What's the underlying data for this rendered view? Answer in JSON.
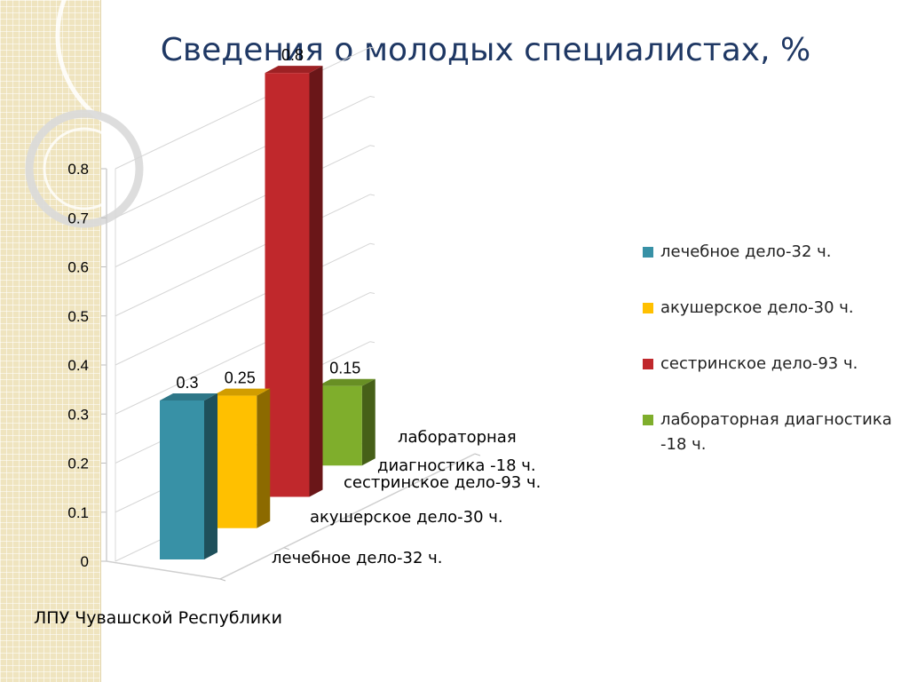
{
  "title": "Сведения о молодых специалистах, %",
  "chart_data": {
    "type": "bar",
    "categories": [
      "ЛПУ Чувашской Республики"
    ],
    "series": [
      {
        "name": "лечебное дело-32 ч.",
        "values": [
          0.3
        ],
        "color": "#3891a6"
      },
      {
        "name": "акушерское дело-30 ч.",
        "values": [
          0.25
        ],
        "color": "#ffc000"
      },
      {
        "name": "сестринское дело-93 ч.",
        "values": [
          0.8
        ],
        "color": "#c0282c"
      },
      {
        "name": "лабораторная диагностика -18 ч.",
        "values": [
          0.15
        ],
        "color": "#7fae2c"
      }
    ],
    "value_labels": [
      "0.3",
      "0.25",
      "0.8",
      "0.15"
    ],
    "y_ticks": [
      "0",
      "0.1",
      "0.2",
      "0.3",
      "0.4",
      "0.5",
      "0.6",
      "0.7",
      "0.8"
    ],
    "ylim": [
      0,
      0.8
    ],
    "chart_style": "3d-column",
    "legend_position": "right",
    "grid": true
  },
  "depth_labels": [
    "лечебное дело-32 ч.",
    "акушерское дело-30 ч.",
    "сестринское дело-93 ч.",
    "лабораторная",
    "диагностика -18 ч."
  ],
  "category_label": "ЛПУ Чувашской Республики",
  "legend": {
    "items": [
      "лечебное дело-32 ч.",
      "акушерское дело-30 ч.",
      "сестринское дело-93 ч.",
      "лабораторная диагностика -18 ч."
    ]
  }
}
